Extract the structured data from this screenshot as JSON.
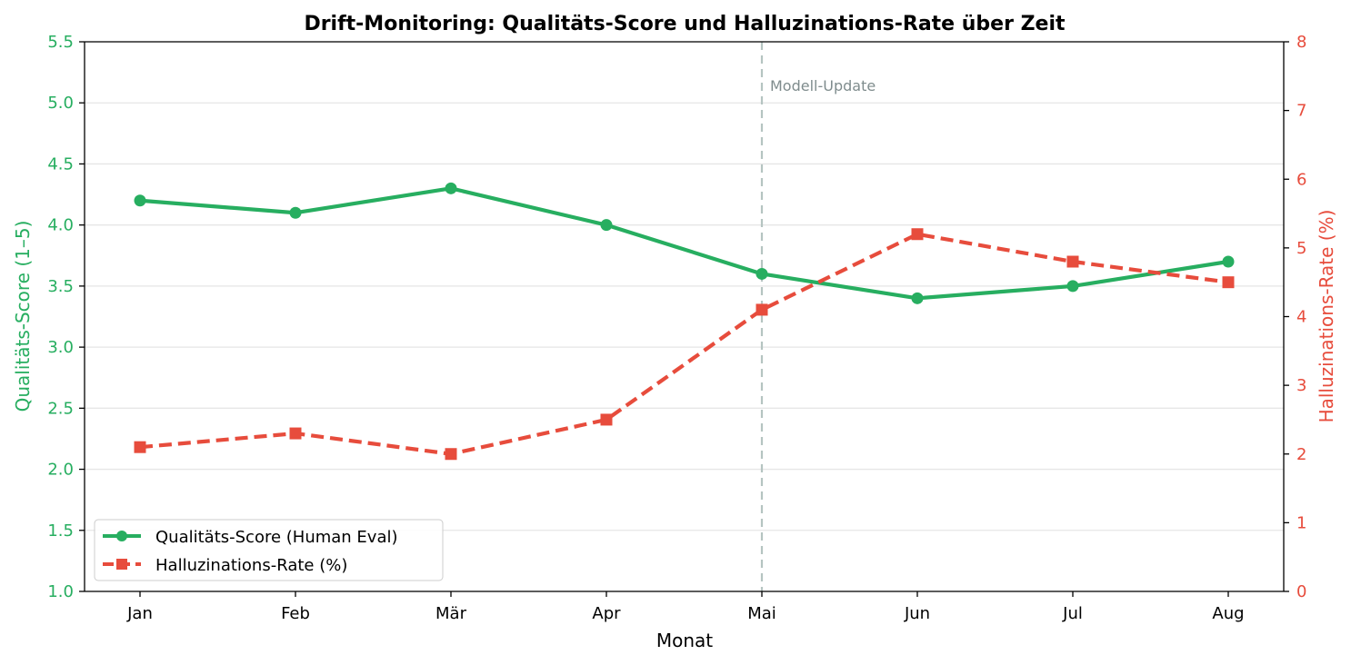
{
  "chart_data": {
    "type": "line",
    "title": "Drift-Monitoring: Qualitäts-Score und Halluzinations-Rate über Zeit",
    "xlabel": "Monat",
    "categories": [
      "Jan",
      "Feb",
      "Mär",
      "Apr",
      "Mai",
      "Jun",
      "Jul",
      "Aug"
    ],
    "y_left": {
      "label": "Qualitäts-Score (1–5)",
      "range": [
        1.0,
        5.5
      ],
      "ticks": [
        "1.0",
        "1.5",
        "2.0",
        "2.5",
        "3.0",
        "3.5",
        "4.0",
        "4.5",
        "5.0",
        "5.5"
      ],
      "color": "#27ae60"
    },
    "y_right": {
      "label": "Halluzinations-Rate (%)",
      "range": [
        0,
        8
      ],
      "ticks": [
        "0",
        "1",
        "2",
        "3",
        "4",
        "5",
        "6",
        "7",
        "8"
      ],
      "color": "#e74c3c"
    },
    "series": [
      {
        "name": "Qualitäts-Score (Human Eval)",
        "axis": "left",
        "color": "#27ae60",
        "style": "solid",
        "marker": "circle",
        "values": [
          4.2,
          4.1,
          4.3,
          4.0,
          3.6,
          3.4,
          3.5,
          3.7
        ]
      },
      {
        "name": "Halluzinations-Rate (%)",
        "axis": "right",
        "color": "#e74c3c",
        "style": "dashed",
        "marker": "square",
        "values": [
          2.1,
          2.3,
          2.0,
          2.5,
          4.1,
          5.2,
          4.8,
          4.5
        ]
      }
    ],
    "annotation": {
      "text": "Modell-Update",
      "at_category": "Mai",
      "color": "#7f8c8d",
      "line_color": "#b5c4c1"
    },
    "grid": "horizontal",
    "legend_position": "lower-left"
  }
}
